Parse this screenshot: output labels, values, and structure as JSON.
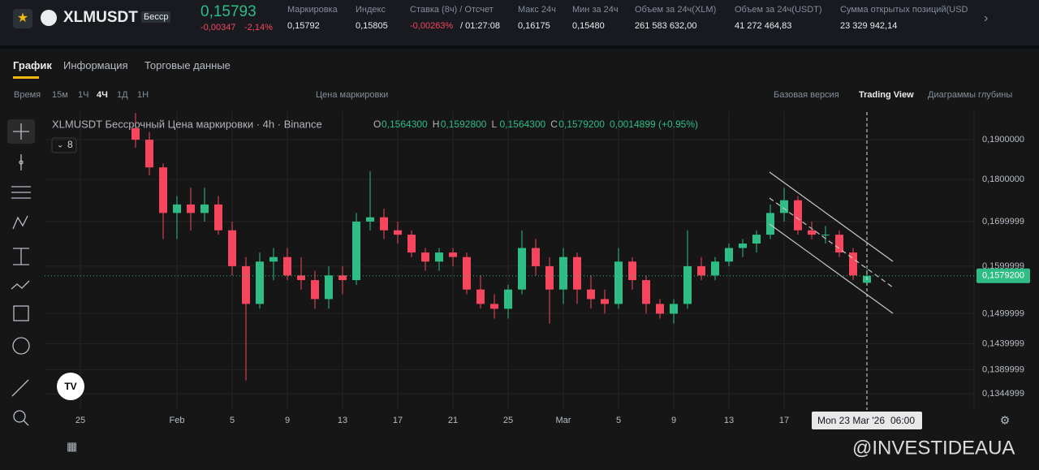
{
  "header": {
    "symbol": "XLMUSDT",
    "badge": "Бесср",
    "price": "0,15793",
    "change": "-0,00347",
    "change_pct": "-2,14%",
    "stats": [
      {
        "label": "Маркировка",
        "value": "0,15792"
      },
      {
        "label": "Индекс",
        "value": "0,15805"
      },
      {
        "label": "Ставка (8ч) / Отсчет",
        "value": "-0,00263%",
        "value2": "/ 01:27:08"
      },
      {
        "label": "Макс 24ч",
        "value": "0,16175"
      },
      {
        "label": "Мин за 24ч",
        "value": "0,15480"
      },
      {
        "label": "Объем за 24ч(XLM)",
        "value": "261 583 632,00"
      },
      {
        "label": "Объем за 24ч(USDT)",
        "value": "41 272 464,83"
      },
      {
        "label": "Сумма открытых позиций(USD",
        "value": "23 329 942,14"
      }
    ]
  },
  "tabs": [
    "График",
    "Информация",
    "Торговые данные"
  ],
  "toolbar": {
    "left": [
      "Время",
      "15м",
      "1Ч",
      "4Ч",
      "1Д",
      "1Н"
    ],
    "price_type": "Цена маркировки",
    "right": [
      "Базовая версия",
      "Trading View",
      "Диаграммы глубины"
    ]
  },
  "indicator_count": "8",
  "watermark": "@INVESTIDEAUA",
  "chart_data": {
    "type": "candlestick",
    "title": "XLMUSDT Бессрочный Цена маркировки · 4h · Binance",
    "legend": [
      {
        "key": "O",
        "value": "0,1564300"
      },
      {
        "key": "H",
        "value": "0,1592800"
      },
      {
        "key": "L",
        "value": "0,1564300"
      },
      {
        "key": "C",
        "value": "0,1579200"
      }
    ],
    "legend_change": "0,0014899 (+0.95%)",
    "categories": [
      null,
      null,
      "25",
      null,
      null,
      null,
      null,
      null,
      null,
      "Feb",
      null,
      null,
      null,
      "5",
      null,
      null,
      null,
      "9",
      null,
      null,
      null,
      "13",
      null,
      null,
      null,
      "17",
      null,
      null,
      null,
      "21",
      null,
      null,
      null,
      "25",
      null,
      null,
      null,
      "Mar",
      null,
      null,
      null,
      "5",
      null,
      null,
      null,
      "9",
      null,
      null,
      null,
      "13",
      null,
      null,
      null,
      "17",
      null,
      null,
      null,
      null,
      null,
      null
    ],
    "open": [
      null,
      null,
      null,
      null,
      null,
      null,
      0.193,
      0.19,
      0.183,
      0.172,
      0.174,
      0.172,
      0.174,
      0.168,
      0.16,
      0.152,
      0.161,
      0.162,
      0.158,
      0.157,
      0.153,
      0.158,
      0.157,
      0.17,
      0.171,
      0.168,
      0.167,
      0.163,
      0.161,
      0.163,
      0.162,
      0.155,
      0.152,
      0.151,
      0.155,
      0.164,
      0.16,
      0.155,
      0.162,
      0.155,
      0.153,
      0.152,
      0.161,
      0.157,
      0.152,
      0.15,
      0.152,
      0.16,
      0.158,
      0.161,
      0.164,
      0.165,
      0.167,
      0.172,
      0.175,
      0.168,
      0.167,
      0.167,
      0.163,
      0.15643
    ],
    "high": [
      null,
      null,
      null,
      null,
      null,
      null,
      0.197,
      0.192,
      0.184,
      0.176,
      0.178,
      0.178,
      0.176,
      0.17,
      0.162,
      0.163,
      0.164,
      0.164,
      0.162,
      0.159,
      0.16,
      0.16,
      0.172,
      0.182,
      0.173,
      0.17,
      0.168,
      0.164,
      0.164,
      0.164,
      0.163,
      0.158,
      0.154,
      0.156,
      0.168,
      0.166,
      0.162,
      0.164,
      0.163,
      0.158,
      0.155,
      0.164,
      0.162,
      0.158,
      0.153,
      0.153,
      0.168,
      0.162,
      0.162,
      0.165,
      0.166,
      0.168,
      0.174,
      0.178,
      0.176,
      0.17,
      0.169,
      0.168,
      0.164,
      0.15928
    ],
    "low": [
      null,
      null,
      null,
      null,
      null,
      null,
      0.188,
      0.181,
      0.166,
      0.166,
      0.168,
      0.17,
      0.167,
      0.158,
      0.137,
      0.151,
      0.157,
      0.157,
      0.155,
      0.151,
      0.151,
      0.154,
      0.156,
      0.168,
      0.166,
      0.165,
      0.162,
      0.159,
      0.159,
      0.16,
      0.154,
      0.151,
      0.149,
      0.149,
      0.154,
      0.158,
      0.148,
      0.152,
      0.152,
      0.151,
      0.15,
      0.151,
      0.155,
      0.15,
      0.149,
      0.148,
      0.151,
      0.157,
      0.157,
      0.16,
      0.162,
      0.163,
      0.166,
      0.17,
      0.167,
      0.166,
      0.165,
      0.162,
      0.157,
      0.15643
    ],
    "close": [
      null,
      null,
      null,
      null,
      null,
      null,
      0.19,
      0.183,
      0.172,
      0.174,
      0.172,
      0.174,
      0.168,
      0.16,
      0.152,
      0.161,
      0.162,
      0.158,
      0.157,
      0.153,
      0.158,
      0.157,
      0.17,
      0.171,
      0.168,
      0.167,
      0.163,
      0.161,
      0.163,
      0.162,
      0.155,
      0.152,
      0.151,
      0.155,
      0.164,
      0.16,
      0.155,
      0.162,
      0.155,
      0.153,
      0.152,
      0.161,
      0.157,
      0.152,
      0.15,
      0.152,
      0.16,
      0.158,
      0.161,
      0.164,
      0.165,
      0.167,
      0.172,
      0.175,
      0.168,
      0.167,
      0.167,
      0.163,
      0.158,
      0.15792
    ],
    "up_color": "#2ebd85",
    "down_color": "#f6465d",
    "log_scale": true,
    "grid": true,
    "ylim": [
      0.1316,
      0.1973
    ],
    "yticks": [
      {
        "value": 0.19,
        "label": "0,1900000"
      },
      {
        "value": 0.18,
        "label": "0,1800000"
      },
      {
        "value": 0.1699999,
        "label": "0,1699999"
      },
      {
        "value": 0.1599999,
        "label": "0,1599999"
      },
      {
        "value": 0.1499999,
        "label": "0,1499999"
      },
      {
        "value": 0.1439999,
        "label": "0,1439999"
      },
      {
        "value": 0.1389999,
        "label": "0,1389999"
      },
      {
        "value": 0.1344999,
        "label": "0,1344999"
      }
    ],
    "last_price": {
      "value": 0.15792,
      "label": "0,1579200"
    },
    "crosshair": {
      "date": "Mon 23 Mar '26",
      "time": "06:00"
    }
  }
}
